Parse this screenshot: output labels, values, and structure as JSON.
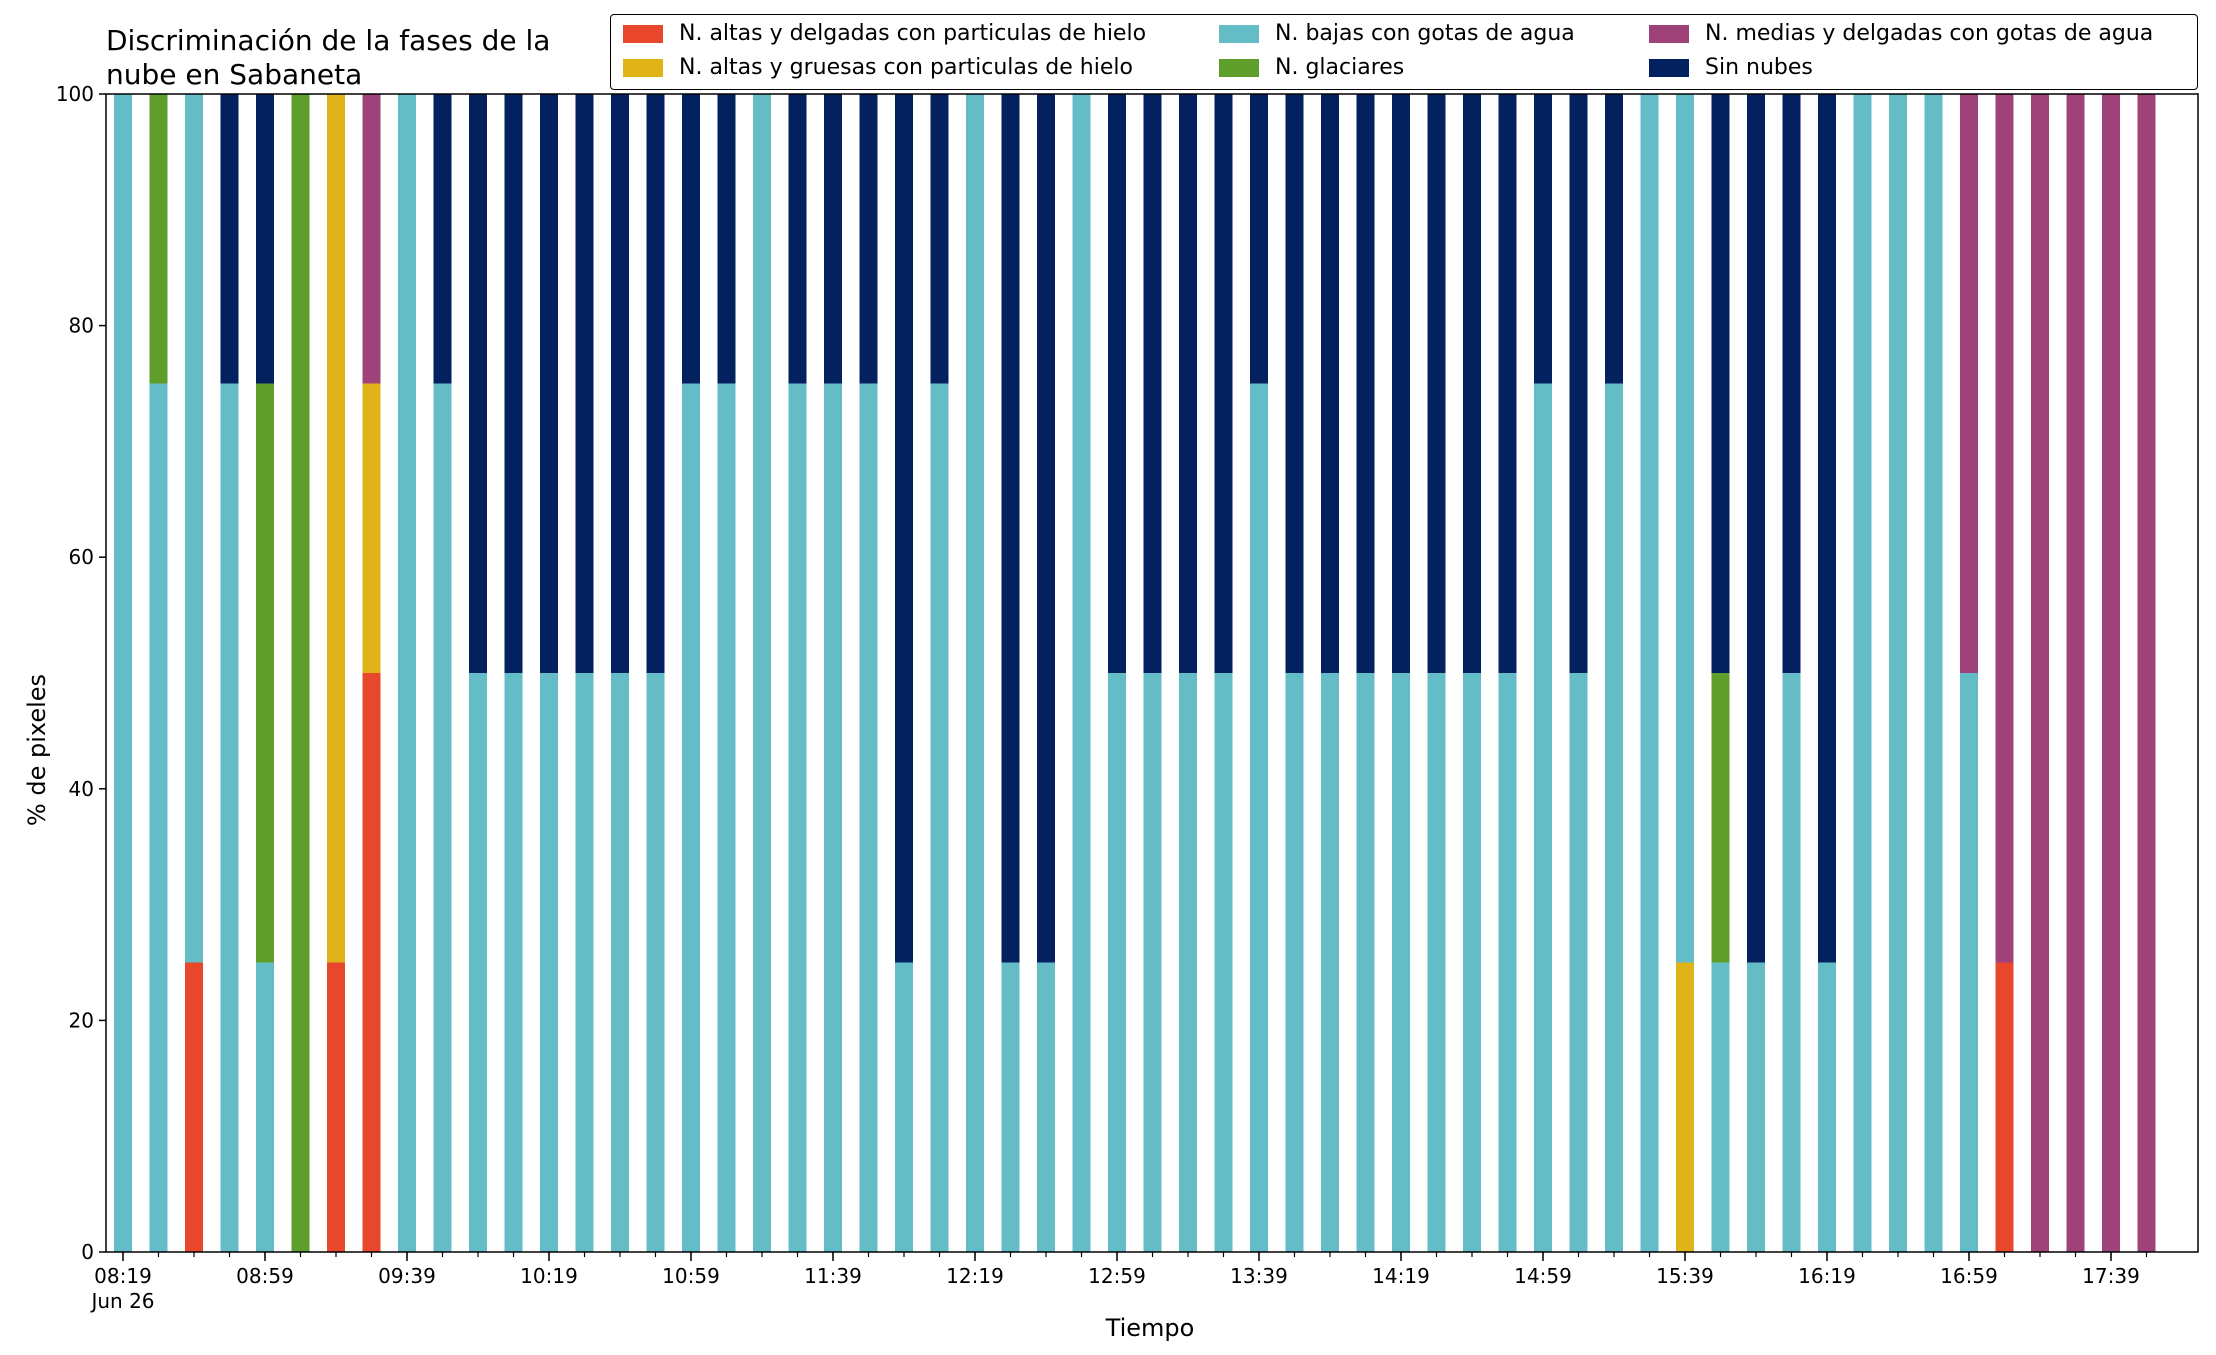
{
  "chart_data": {
    "type": "bar",
    "stacked": true,
    "title": "Discriminación de la fases de la\nnube en Sabaneta",
    "xlabel": "Tiempo",
    "ylabel": "% de pixeles",
    "ylim": [
      0,
      100
    ],
    "yticks": [
      0,
      20,
      40,
      60,
      80,
      100
    ],
    "grid": false,
    "legend_position": "top-right",
    "legend_columns": 3,
    "x_tick_labels": [
      {
        "index": 0,
        "label": "08:19",
        "sublabel": "Jun 26"
      },
      {
        "index": 4,
        "label": "08:59"
      },
      {
        "index": 8,
        "label": "09:39"
      },
      {
        "index": 12,
        "label": "10:19"
      },
      {
        "index": 16,
        "label": "10:59"
      },
      {
        "index": 20,
        "label": "11:39"
      },
      {
        "index": 24,
        "label": "12:19"
      },
      {
        "index": 28,
        "label": "12:59"
      },
      {
        "index": 32,
        "label": "13:39"
      },
      {
        "index": 36,
        "label": "14:19"
      },
      {
        "index": 40,
        "label": "14:59"
      },
      {
        "index": 44,
        "label": "15:39"
      },
      {
        "index": 48,
        "label": "16:19"
      },
      {
        "index": 52,
        "label": "16:59"
      },
      {
        "index": 56,
        "label": "17:39"
      }
    ],
    "bar_count": 58,
    "series": [
      {
        "name": "N. altas y delgadas con particulas de hielo",
        "color": "#e8472b",
        "values": [
          0,
          0,
          25,
          0,
          0,
          0,
          25,
          50,
          0,
          0,
          0,
          0,
          0,
          0,
          0,
          0,
          0,
          0,
          0,
          0,
          0,
          0,
          0,
          0,
          0,
          0,
          0,
          0,
          0,
          0,
          0,
          0,
          0,
          0,
          0,
          0,
          0,
          0,
          0,
          0,
          0,
          0,
          0,
          0,
          0,
          0,
          0,
          0,
          0,
          0,
          0,
          0,
          0,
          25,
          0,
          0,
          0,
          0
        ]
      },
      {
        "name": "N. altas y gruesas con particulas de hielo",
        "color": "#e0b418",
        "values": [
          0,
          0,
          0,
          0,
          0,
          0,
          75,
          25,
          0,
          0,
          0,
          0,
          0,
          0,
          0,
          0,
          0,
          0,
          0,
          0,
          0,
          0,
          0,
          0,
          0,
          0,
          0,
          0,
          0,
          0,
          0,
          0,
          0,
          0,
          0,
          0,
          0,
          0,
          0,
          0,
          0,
          0,
          0,
          0,
          25,
          0,
          0,
          0,
          0,
          0,
          0,
          0,
          0,
          0,
          0,
          0,
          0,
          0
        ]
      },
      {
        "name": "N. bajas con gotas de agua",
        "color": "#64bcc7",
        "values": [
          100,
          75,
          75,
          75,
          25,
          0,
          0,
          0,
          100,
          75,
          50,
          50,
          50,
          50,
          50,
          50,
          75,
          75,
          100,
          75,
          75,
          75,
          25,
          75,
          100,
          25,
          25,
          100,
          50,
          50,
          50,
          50,
          75,
          50,
          50,
          50,
          50,
          50,
          50,
          50,
          75,
          50,
          75,
          100,
          75,
          25,
          25,
          50,
          25,
          100,
          100,
          100,
          50,
          0,
          0,
          0,
          0,
          0
        ]
      },
      {
        "name": "N. glaciares",
        "color": "#5f9e2a",
        "values": [
          0,
          25,
          0,
          0,
          50,
          100,
          0,
          0,
          0,
          0,
          0,
          0,
          0,
          0,
          0,
          0,
          0,
          0,
          0,
          0,
          0,
          0,
          0,
          0,
          0,
          0,
          0,
          0,
          0,
          0,
          0,
          0,
          0,
          0,
          0,
          0,
          0,
          0,
          0,
          0,
          0,
          0,
          0,
          0,
          0,
          25,
          0,
          0,
          0,
          0,
          0,
          0,
          0,
          0,
          0,
          0,
          0,
          0
        ]
      },
      {
        "name": "N. medias y delgadas con gotas de agua",
        "color": "#a0427a",
        "values": [
          0,
          0,
          0,
          0,
          0,
          0,
          0,
          25,
          0,
          0,
          0,
          0,
          0,
          0,
          0,
          0,
          0,
          0,
          0,
          0,
          0,
          0,
          0,
          0,
          0,
          0,
          0,
          0,
          0,
          0,
          0,
          0,
          0,
          0,
          0,
          0,
          0,
          0,
          0,
          0,
          0,
          0,
          0,
          0,
          0,
          0,
          0,
          0,
          0,
          0,
          0,
          0,
          50,
          75,
          100,
          100,
          100,
          100
        ]
      },
      {
        "name": "Sin nubes",
        "color": "#03205f",
        "values": [
          0,
          0,
          0,
          25,
          25,
          0,
          0,
          0,
          0,
          25,
          50,
          50,
          50,
          50,
          50,
          50,
          25,
          25,
          0,
          25,
          25,
          25,
          75,
          25,
          0,
          75,
          75,
          0,
          50,
          50,
          50,
          50,
          25,
          50,
          50,
          50,
          50,
          50,
          50,
          50,
          25,
          50,
          25,
          0,
          0,
          50,
          75,
          50,
          75,
          0,
          0,
          0,
          0,
          0,
          0,
          0,
          0,
          0
        ]
      }
    ]
  }
}
